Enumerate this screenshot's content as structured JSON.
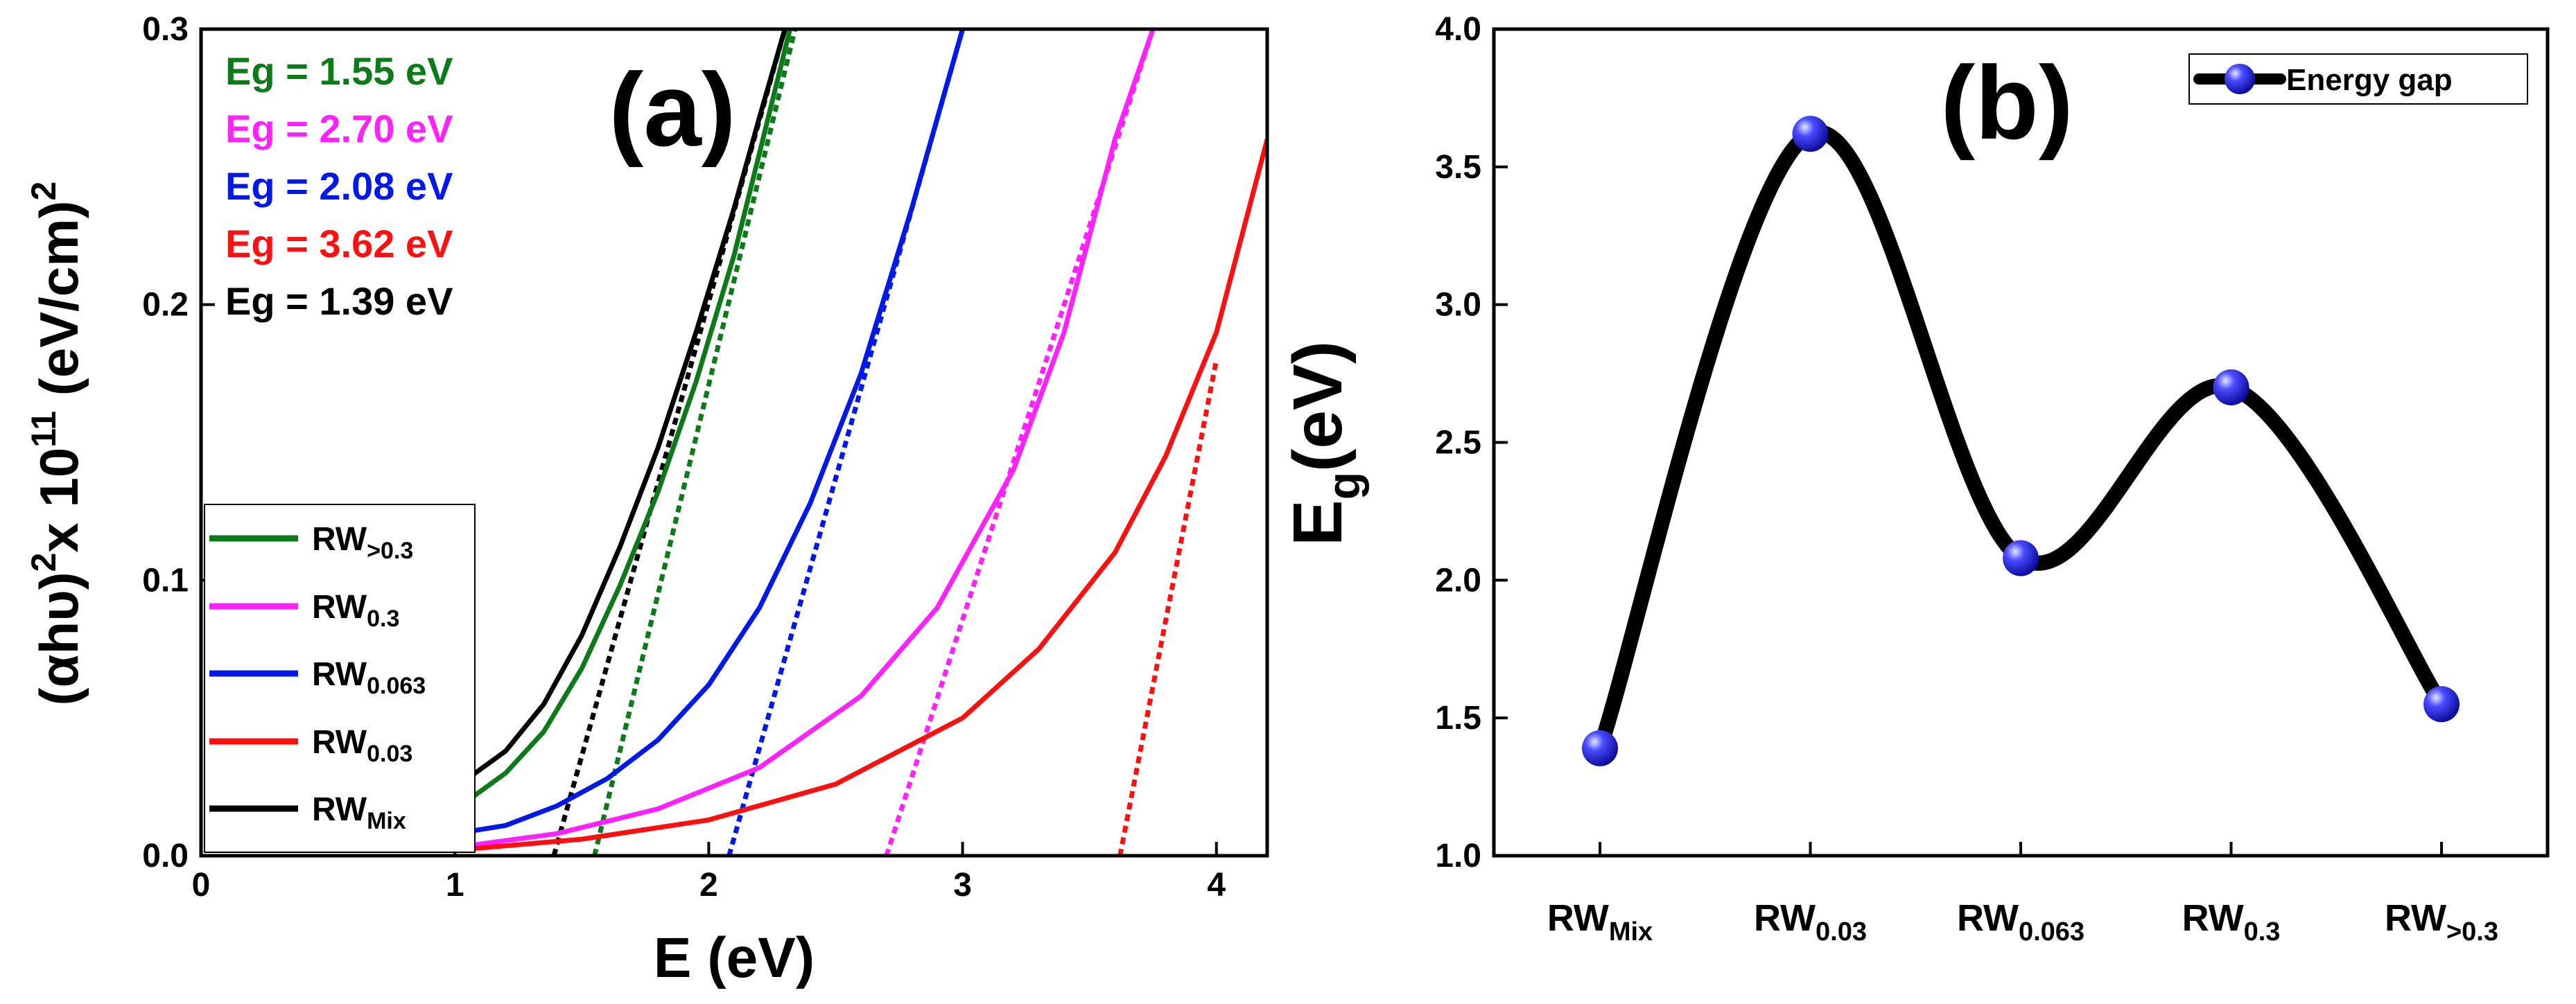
{
  "chart_data": [
    {
      "type": "line",
      "panel_label": "(a)",
      "xlabel": "E (eV)",
      "ylabel": {
        "base": "(αhυ)",
        "sup1": "2",
        "mid": "x 10",
        "sup2": "11",
        "units": " (eV/cm)",
        "sup3": "2"
      },
      "xlim": [
        0,
        4.2
      ],
      "ylim": [
        0,
        0.3
      ],
      "x_ticks": [
        "0",
        "1",
        "2",
        "3",
        "4"
      ],
      "y_ticks": [
        "0.0",
        "0.1",
        "0.2",
        "0.3"
      ],
      "annotations": [
        {
          "text": "Eg = 1.55 eV",
          "color": "#0d7a1a"
        },
        {
          "text": "Eg = 2.70 eV",
          "color": "#ff22ff"
        },
        {
          "text": "Eg = 2.08 eV",
          "color": "#0018e8"
        },
        {
          "text": "Eg = 3.62 eV",
          "color": "#ff1010"
        },
        {
          "text": "Eg = 1.39 eV",
          "color": "#000000"
        }
      ],
      "legend": [
        {
          "base": "RW",
          "sub": ">0.3",
          "color": "#0d7a1a"
        },
        {
          "base": "RW",
          "sub": "0.3",
          "color": "#ff22ff"
        },
        {
          "base": "RW",
          "sub": "0.063",
          "color": "#0018e8"
        },
        {
          "base": "RW",
          "sub": "0.03",
          "color": "#ff1010"
        },
        {
          "base": "RW",
          "sub": "Mix",
          "color": "#000000"
        }
      ],
      "series": [
        {
          "name": "RWMix",
          "color": "#000000",
          "x": [
            1.05,
            1.2,
            1.35,
            1.5,
            1.65,
            1.8,
            1.95,
            2.1,
            2.2,
            2.3
          ],
          "y": [
            0.028,
            0.038,
            0.055,
            0.08,
            0.112,
            0.148,
            0.19,
            0.235,
            0.268,
            0.3
          ],
          "tangent": {
            "x": [
              1.39,
              2.3
            ],
            "y": [
              0,
              0.3
            ]
          }
        },
        {
          "name": "RW>0.3",
          "color": "#0d7a1a",
          "x": [
            1.05,
            1.2,
            1.35,
            1.5,
            1.65,
            1.8,
            1.95,
            2.1,
            2.2,
            2.32
          ],
          "y": [
            0.02,
            0.03,
            0.045,
            0.068,
            0.098,
            0.132,
            0.172,
            0.218,
            0.255,
            0.3
          ],
          "tangent": {
            "x": [
              1.55,
              2.34
            ],
            "y": [
              0,
              0.3
            ]
          }
        },
        {
          "name": "RW0.063",
          "color": "#0018e8",
          "x": [
            1.0,
            1.2,
            1.4,
            1.6,
            1.8,
            2.0,
            2.2,
            2.4,
            2.6,
            2.8,
            3.0
          ],
          "y": [
            0.008,
            0.011,
            0.018,
            0.028,
            0.042,
            0.062,
            0.09,
            0.128,
            0.175,
            0.235,
            0.3
          ],
          "tangent": {
            "x": [
              2.08,
              3.0
            ],
            "y": [
              0,
              0.3
            ]
          }
        },
        {
          "name": "RW0.3",
          "color": "#ff22ff",
          "x": [
            1.0,
            1.4,
            1.8,
            2.2,
            2.6,
            2.9,
            3.2,
            3.4,
            3.6,
            3.75
          ],
          "y": [
            0.003,
            0.008,
            0.017,
            0.032,
            0.058,
            0.09,
            0.14,
            0.19,
            0.26,
            0.3
          ],
          "tangent": {
            "x": [
              2.7,
              3.75
            ],
            "y": [
              0,
              0.3
            ]
          }
        },
        {
          "name": "RW0.03",
          "color": "#ff1010",
          "x": [
            1.0,
            1.5,
            2.0,
            2.5,
            3.0,
            3.3,
            3.6,
            3.8,
            4.0,
            4.2
          ],
          "y": [
            0.002,
            0.006,
            0.013,
            0.026,
            0.05,
            0.075,
            0.11,
            0.145,
            0.19,
            0.26
          ],
          "tangent": {
            "x": [
              3.62,
              4.0
            ],
            "y": [
              0,
              0.18
            ]
          }
        }
      ]
    },
    {
      "type": "line",
      "panel_label": "(b)",
      "ylabel": {
        "base": "E",
        "sub": "g",
        "rest": "(eV)"
      },
      "ylim": [
        1.0,
        4.0
      ],
      "y_ticks": [
        "1.0",
        "1.5",
        "2.0",
        "2.5",
        "3.0",
        "3.5",
        "4.0"
      ],
      "categories": [
        {
          "base": "RW",
          "sub": "Mix"
        },
        {
          "base": "RW",
          "sub": "0.03"
        },
        {
          "base": "RW",
          "sub": "0.063"
        },
        {
          "base": "RW",
          "sub": "0.3"
        },
        {
          "base": "RW",
          "sub": ">0.3"
        }
      ],
      "series": [
        {
          "name": "Energy gap",
          "values": [
            1.39,
            3.62,
            2.08,
            2.7,
            1.55
          ],
          "color": "#000000",
          "marker_color": "#2a2aff"
        }
      ],
      "legend_label": "Energy gap"
    }
  ]
}
